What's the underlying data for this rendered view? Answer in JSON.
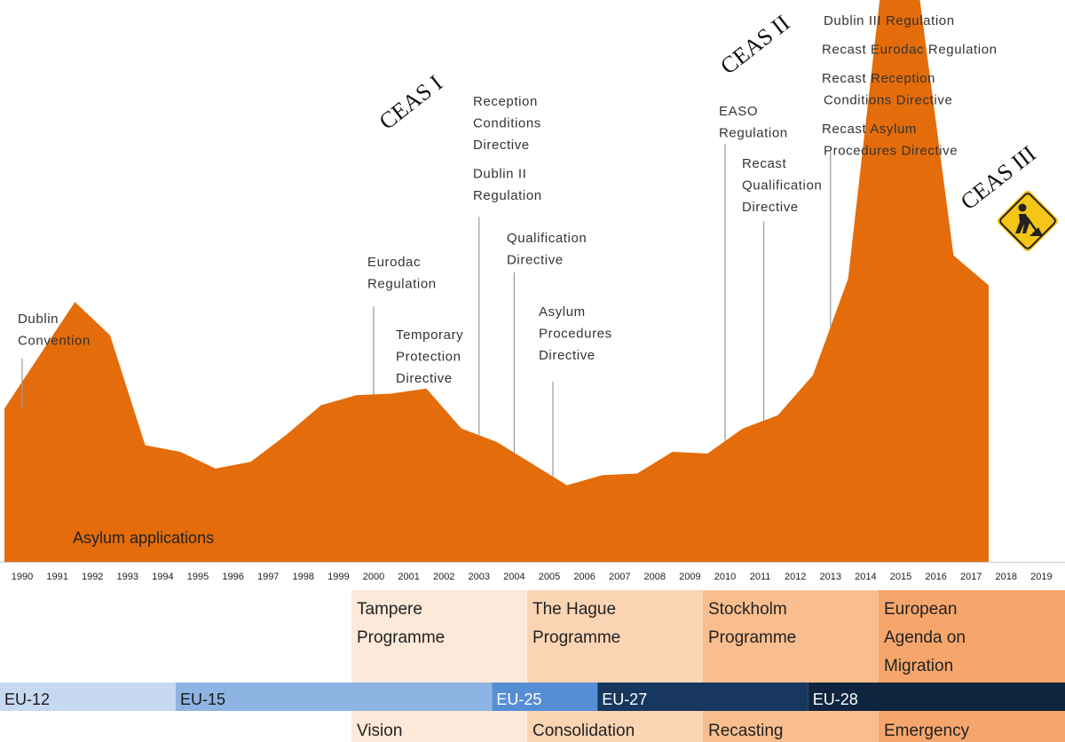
{
  "chart_data": {
    "type": "area",
    "xlabel": "",
    "ylabel": "",
    "grid": false,
    "x": [
      1990,
      1991,
      1992,
      1993,
      1994,
      1995,
      1996,
      1997,
      1998,
      1999,
      2000,
      2001,
      2002,
      2003,
      2004,
      2005,
      2006,
      2007,
      2008,
      2009,
      2010,
      2011,
      2012,
      2013,
      2014,
      2015,
      2016,
      2017,
      2018,
      2019
    ],
    "x_tick_labels": [
      "1990",
      "1991",
      "1992",
      "1993",
      "1994",
      "1995",
      "1996",
      "1997",
      "1998",
      "1999",
      "2000",
      "2001",
      "2002",
      "2003",
      "2004",
      "2005",
      "2006",
      "2007",
      "2008",
      "2009",
      "2010",
      "2011",
      "2012",
      "2013",
      "2014",
      "2015",
      "2016",
      "2017",
      "2018",
      "2019"
    ],
    "ylim": [
      0,
      1500000
    ],
    "series": [
      {
        "name": "Asylum applications",
        "color": "#E46C0A",
        "x": [
          1990,
          1991.5,
          1992.5,
          1993.5,
          1994.5,
          1995.5,
          1996.5,
          1997.5,
          1998.5,
          1999.5,
          2000.5,
          2001.5,
          2002.5,
          2003.5,
          2004.5,
          2005.5,
          2006.5,
          2007.5,
          2008.5,
          2009.5,
          2010.5,
          2011.5,
          2012.5,
          2013.5,
          2014.5,
          2015.5,
          2016.5,
          2017.5,
          2018.5
        ],
        "values": [
          460000,
          780000,
          680000,
          350000,
          330000,
          280000,
          300000,
          380000,
          470000,
          500000,
          505000,
          520000,
          400000,
          360000,
          295000,
          230000,
          260000,
          265000,
          330000,
          325000,
          400000,
          440000,
          560000,
          850000,
          1780000,
          1720000,
          920000,
          830000,
          0
        ],
        "value_note": "approximate values estimated from area height"
      }
    ],
    "area_label": "Asylum applications",
    "events": [
      {
        "year": 1990.0,
        "lines": [
          "Dublin",
          "Convention"
        ]
      },
      {
        "year": 2000.0,
        "lines": [
          "Eurodac",
          "Regulation"
        ]
      },
      {
        "year": 2001.2,
        "lines": [
          "Temporary",
          "Protection",
          "Directive"
        ]
      },
      {
        "year": 2003.0,
        "lines": [
          "Reception",
          "Conditions",
          "Directive",
          "",
          "Dublin II",
          "Regulation"
        ]
      },
      {
        "year": 2004.0,
        "lines": [
          "Qualification",
          "Directive"
        ]
      },
      {
        "year": 2005.1,
        "lines": [
          "Asylum",
          "Procedures",
          "Directive"
        ]
      },
      {
        "year": 2010.0,
        "lines": [
          "EASO",
          "Regulation"
        ]
      },
      {
        "year": 2011.1,
        "lines": [
          "Recast",
          "Qualification",
          "Directive"
        ]
      },
      {
        "year": 2013.0,
        "lines": [
          "Dublin III Regulation",
          "",
          "Recast Eurodac Regulation",
          "",
          "Recast Reception",
          "Conditions Directive",
          "",
          "Recast Asylum",
          "Procedures Directive"
        ]
      }
    ],
    "phases": [
      {
        "label": "CEAS I"
      },
      {
        "label": "CEAS II"
      },
      {
        "label": "CEAS III"
      }
    ],
    "programmes": [
      {
        "lines": [
          "Tampere",
          "Programme"
        ],
        "bottom": "Vision",
        "start": 2000,
        "end": 2005,
        "color": "#FDE9D9"
      },
      {
        "lines": [
          "The Hague",
          "Programme"
        ],
        "bottom": "Consolidation",
        "start": 2005,
        "end": 2010,
        "color": "#FBD4B4"
      },
      {
        "lines": [
          "Stockholm",
          "Programme"
        ],
        "bottom": "Recasting",
        "start": 2010,
        "end": 2015,
        "color": "#F9BE8F"
      },
      {
        "lines": [
          "European",
          "Agenda on",
          "Migration"
        ],
        "bottom": "Emergency",
        "start": 2015,
        "end": 2020,
        "color": "#F6A66C"
      }
    ],
    "eu_membership": [
      {
        "label": "EU-12",
        "start": 1990,
        "end": 1995,
        "color": "#C6D9F1",
        "text_color": "#1a1a1a"
      },
      {
        "label": "EU-15",
        "start": 1995,
        "end": 2004,
        "color": "#8EB4E3",
        "text_color": "#1a1a1a"
      },
      {
        "label": "EU-25",
        "start": 2004,
        "end": 2007,
        "color": "#558ED5",
        "text_color": "#ffffff"
      },
      {
        "label": "EU-27",
        "start": 2007,
        "end": 2013,
        "color": "#17375E",
        "text_color": "#ffffff"
      },
      {
        "label": "EU-28",
        "start": 2013,
        "end": 2020,
        "color": "#0F243E",
        "text_color": "#ffffff"
      }
    ],
    "road_work_sign": {
      "icon": "road-work-sign-icon",
      "color": "#F5C518"
    }
  }
}
